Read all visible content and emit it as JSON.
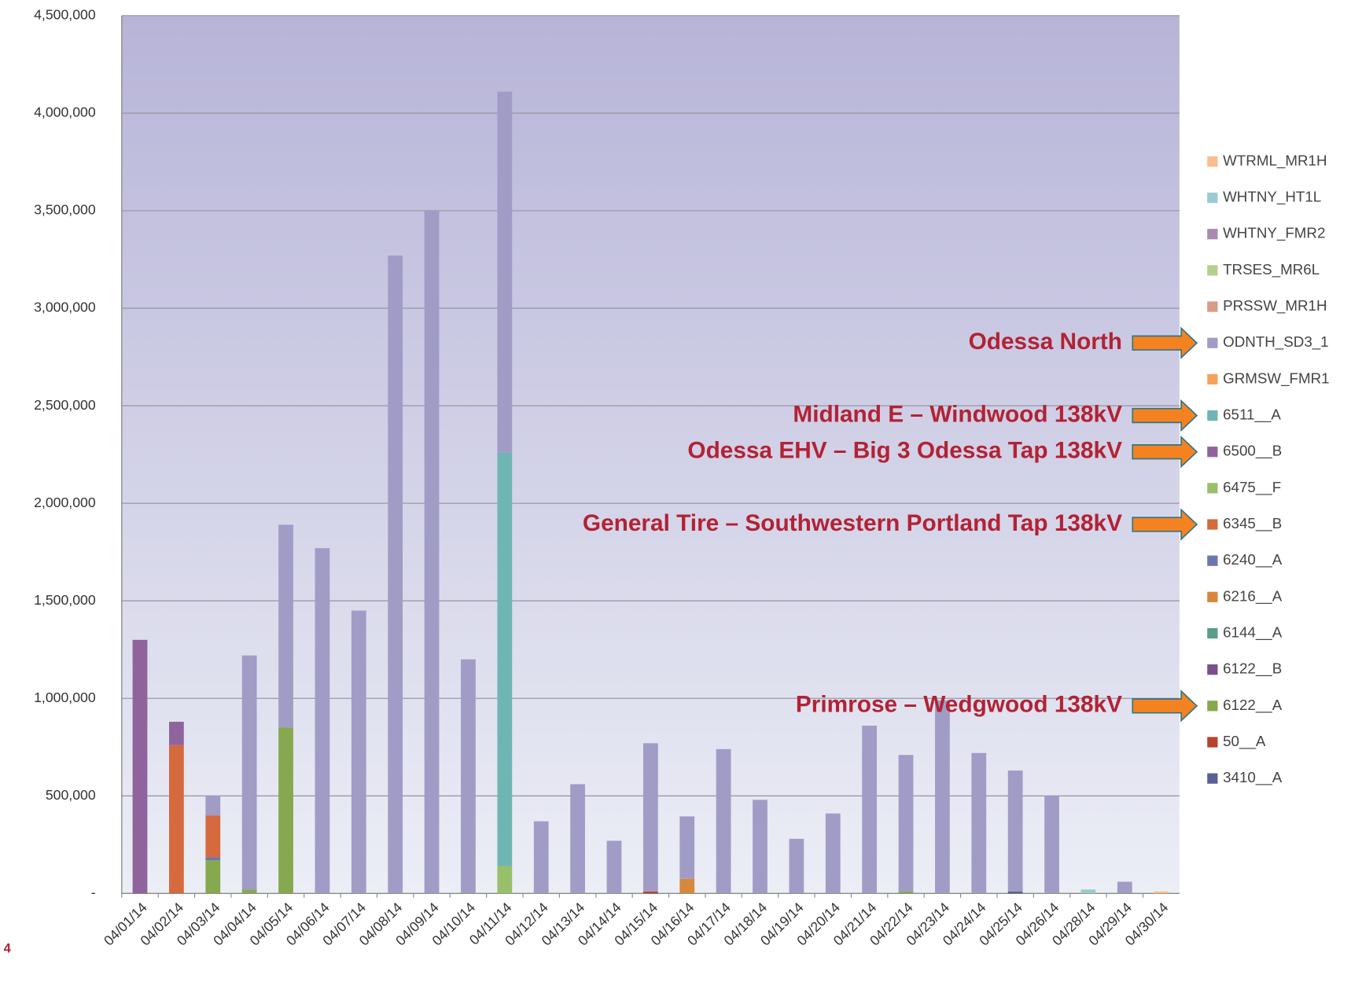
{
  "chart_data": {
    "type": "stacked_bar",
    "categories": [
      "04/01/14",
      "04/02/14",
      "04/03/14",
      "04/04/14",
      "04/05/14",
      "04/06/14",
      "04/07/14",
      "04/08/14",
      "04/09/14",
      "04/10/14",
      "04/11/14",
      "04/12/14",
      "04/13/14",
      "04/14/14",
      "04/15/14",
      "04/16/14",
      "04/17/14",
      "04/18/14",
      "04/19/14",
      "04/20/14",
      "04/21/14",
      "04/22/14",
      "04/23/14",
      "04/24/14",
      "04/25/14",
      "04/26/14",
      "04/28/14",
      "04/29/14",
      "04/30/14"
    ],
    "ylim": [
      0,
      4500000
    ],
    "yticks": [
      {
        "value": 0,
        "label": "-"
      },
      {
        "value": 500000,
        "label": "500,000"
      },
      {
        "value": 1000000,
        "label": "1,000,000"
      },
      {
        "value": 1500000,
        "label": "1,500,000"
      },
      {
        "value": 2000000,
        "label": "2,000,000"
      },
      {
        "value": 2500000,
        "label": "2,500,000"
      },
      {
        "value": 3000000,
        "label": "3,000,000"
      },
      {
        "value": 3500000,
        "label": "3,500,000"
      },
      {
        "value": 4000000,
        "label": "4,000,000"
      },
      {
        "value": 4500000,
        "label": "4,500,000"
      }
    ],
    "grid": true,
    "legend": "right",
    "series": [
      {
        "name": "WTRML_MR1H",
        "color": "#f9be8c",
        "values": [
          0,
          0,
          0,
          0,
          0,
          0,
          0,
          0,
          0,
          0,
          0,
          0,
          0,
          0,
          0,
          0,
          0,
          0,
          0,
          0,
          0,
          0,
          0,
          0,
          0,
          0,
          0,
          0,
          10000
        ]
      },
      {
        "name": "WHTNY_HT1L",
        "color": "#9ccbcf",
        "values": [
          0,
          0,
          0,
          0,
          0,
          0,
          0,
          0,
          0,
          0,
          0,
          0,
          0,
          0,
          0,
          0,
          0,
          0,
          0,
          0,
          0,
          0,
          0,
          0,
          0,
          0,
          20000,
          0,
          0
        ]
      },
      {
        "name": "WHTNY_FMR2",
        "color": "#a889b0",
        "values": [
          0,
          0,
          0,
          0,
          0,
          0,
          0,
          0,
          0,
          0,
          0,
          0,
          0,
          0,
          0,
          0,
          0,
          0,
          0,
          0,
          0,
          0,
          0,
          0,
          0,
          0,
          0,
          0,
          0
        ]
      },
      {
        "name": "TRSES_MR6L",
        "color": "#b5cf8e",
        "values": [
          0,
          0,
          0,
          0,
          0,
          0,
          0,
          0,
          0,
          0,
          0,
          0,
          0,
          0,
          0,
          0,
          0,
          0,
          0,
          0,
          0,
          0,
          0,
          0,
          0,
          0,
          0,
          0,
          0
        ]
      },
      {
        "name": "PRSSW_MR1H",
        "color": "#d99a86",
        "values": [
          0,
          0,
          0,
          0,
          0,
          0,
          0,
          0,
          0,
          0,
          0,
          0,
          0,
          0,
          0,
          0,
          0,
          0,
          0,
          0,
          0,
          0,
          0,
          0,
          0,
          0,
          0,
          0,
          0
        ]
      },
      {
        "name": "ODNTH_SD3_1",
        "color": "#a09cc6",
        "values": [
          0,
          0,
          100000,
          1200000,
          1040000,
          1770000,
          1450000,
          3270000,
          3500000,
          1200000,
          1850000,
          370000,
          560000,
          270000,
          760000,
          320000,
          740000,
          480000,
          280000,
          410000,
          860000,
          700000,
          990000,
          720000,
          620000,
          500000,
          0,
          60000,
          0
        ]
      },
      {
        "name": "GRMSW_FMR1",
        "color": "#f5a35c",
        "values": [
          0,
          0,
          0,
          0,
          0,
          0,
          0,
          0,
          0,
          0,
          0,
          0,
          0,
          0,
          0,
          0,
          0,
          0,
          0,
          0,
          0,
          0,
          0,
          0,
          0,
          0,
          0,
          0,
          0
        ]
      },
      {
        "name": "6511__A",
        "color": "#6fb5b3",
        "values": [
          0,
          0,
          0,
          0,
          0,
          0,
          0,
          0,
          0,
          0,
          2120000,
          0,
          0,
          0,
          0,
          0,
          0,
          0,
          0,
          0,
          0,
          0,
          0,
          0,
          0,
          0,
          0,
          0,
          0
        ]
      },
      {
        "name": "6500__B",
        "color": "#8f649c",
        "values": [
          1300000,
          120000,
          0,
          0,
          0,
          0,
          0,
          0,
          0,
          0,
          0,
          0,
          0,
          0,
          0,
          0,
          0,
          0,
          0,
          0,
          0,
          0,
          0,
          0,
          0,
          0,
          0,
          0,
          0
        ]
      },
      {
        "name": "6475__F",
        "color": "#98bf6a",
        "values": [
          0,
          0,
          0,
          0,
          0,
          0,
          0,
          0,
          0,
          0,
          140000,
          0,
          0,
          0,
          0,
          0,
          0,
          0,
          0,
          0,
          0,
          0,
          0,
          0,
          0,
          0,
          0,
          0,
          0
        ]
      },
      {
        "name": "6345__B",
        "color": "#d46a3e",
        "values": [
          0,
          760000,
          215000,
          0,
          0,
          0,
          0,
          0,
          0,
          0,
          0,
          0,
          0,
          0,
          0,
          0,
          0,
          0,
          0,
          0,
          0,
          0,
          0,
          0,
          0,
          0,
          0,
          0,
          0
        ]
      },
      {
        "name": "6240__A",
        "color": "#6c76b0",
        "values": [
          0,
          0,
          15000,
          0,
          0,
          0,
          0,
          0,
          0,
          0,
          0,
          0,
          0,
          0,
          0,
          0,
          0,
          0,
          0,
          0,
          0,
          0,
          0,
          0,
          0,
          0,
          0,
          0,
          0
        ]
      },
      {
        "name": "6216__A",
        "color": "#d8883a",
        "values": [
          0,
          0,
          0,
          0,
          0,
          0,
          0,
          0,
          0,
          0,
          0,
          0,
          0,
          0,
          0,
          75000,
          0,
          0,
          0,
          0,
          0,
          0,
          0,
          0,
          0,
          0,
          0,
          0,
          0
        ]
      },
      {
        "name": "6144__A",
        "color": "#5a9e8a",
        "values": [
          0,
          0,
          0,
          0,
          0,
          0,
          0,
          0,
          0,
          0,
          0,
          0,
          0,
          0,
          0,
          0,
          0,
          0,
          0,
          0,
          0,
          0,
          0,
          0,
          0,
          0,
          0,
          0,
          0
        ]
      },
      {
        "name": "6122__B",
        "color": "#7a4f8c",
        "values": [
          0,
          0,
          0,
          0,
          0,
          0,
          0,
          0,
          0,
          0,
          0,
          0,
          0,
          0,
          0,
          0,
          0,
          0,
          0,
          0,
          0,
          0,
          0,
          0,
          0,
          0,
          0,
          0,
          0
        ]
      },
      {
        "name": "6122__A",
        "color": "#86a84e",
        "values": [
          0,
          0,
          170000,
          20000,
          850000,
          0,
          0,
          0,
          0,
          0,
          0,
          0,
          0,
          0,
          0,
          0,
          0,
          0,
          0,
          0,
          0,
          10000,
          0,
          0,
          0,
          0,
          0,
          0,
          0
        ]
      },
      {
        "name": "50__A",
        "color": "#b8432e",
        "values": [
          0,
          0,
          0,
          0,
          0,
          0,
          0,
          0,
          0,
          0,
          0,
          0,
          0,
          0,
          10000,
          0,
          0,
          0,
          0,
          0,
          0,
          0,
          0,
          0,
          0,
          0,
          0,
          0,
          0
        ]
      },
      {
        "name": "3410__A",
        "color": "#5a6096",
        "values": [
          0,
          0,
          0,
          0,
          0,
          0,
          0,
          0,
          0,
          0,
          0,
          0,
          0,
          0,
          0,
          0,
          0,
          0,
          0,
          0,
          0,
          0,
          0,
          0,
          10000,
          0,
          0,
          0,
          0
        ]
      }
    ],
    "annotations": [
      {
        "text": "Odessa North",
        "series": "ODNTH_SD3_1"
      },
      {
        "text": "Midland E – Windwood 138kV",
        "series": "6511__A"
      },
      {
        "text": "Odessa EHV – Big 3 Odessa Tap 138kV",
        "series": "6500__B"
      },
      {
        "text": "General Tire – Southwestern Portland Tap 138kV",
        "series": "6345__B"
      },
      {
        "text": "Primrose – Wedgwood 138kV",
        "series": "6122__A"
      }
    ]
  },
  "page_number": "4"
}
